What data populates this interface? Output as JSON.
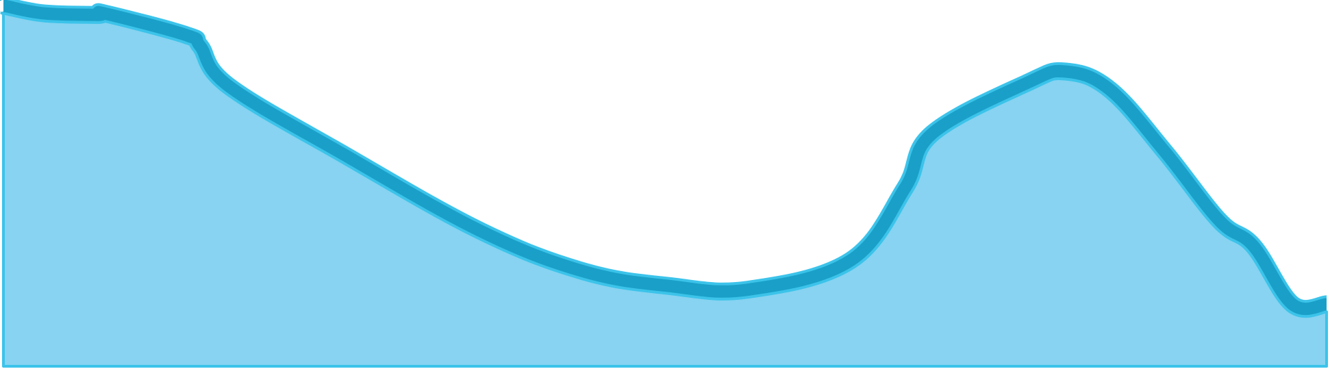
{
  "chart_data": {
    "type": "area",
    "title": "",
    "xlabel": "",
    "ylabel": "",
    "grid": false,
    "legend": "none",
    "x": [
      0,
      3,
      60,
      140,
      148,
      268,
      288,
      330,
      500,
      700,
      850,
      975,
      1090,
      1240,
      1320,
      1360,
      1500,
      1555,
      1620,
      1700,
      1780,
      1830,
      1887,
      1937
    ],
    "ylim": [
      0,
      100
    ],
    "series": [
      {
        "values": [
          97,
          97,
          95,
          94.6,
          95,
          89,
          86,
          75,
          56,
          35,
          24,
          20,
          19,
          27,
          47,
          62,
          76,
          79,
          74,
          57,
          38,
          31,
          15,
          15
        ],
        "fill": "#87d3f1",
        "stroke": "#1aa0c8",
        "edge": "#3cc3ea"
      }
    ]
  }
}
